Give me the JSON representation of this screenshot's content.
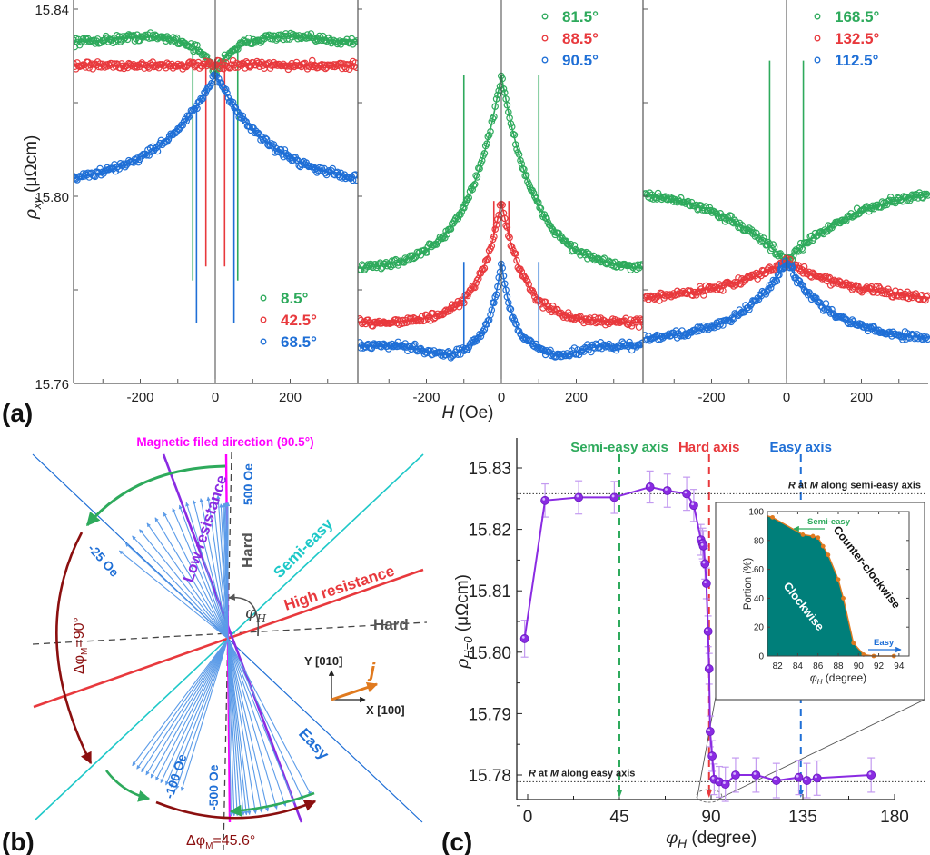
{
  "colors": {
    "green": "#2eaa5c",
    "red": "#e8393d",
    "blue": "#1f6fd6",
    "purple": "#8a2be2",
    "magenta": "#ff00ff",
    "cyan": "#1ec8c8",
    "darkred": "#8b0f0f",
    "orange": "#e07a1f",
    "teal": "#007f7a",
    "lightblue": "#5b9be8"
  },
  "panel_labels": {
    "a": "(a)",
    "b": "(b)",
    "c": "(c)"
  },
  "chart_data": [
    {
      "id": "a",
      "type": "scatter",
      "title": "",
      "xlabel_italic": "H",
      "xlabel_unit": " (Oe)",
      "ylabel_italic": "ρ",
      "ylabel_sub": "xy",
      "ylabel_unit": " (μΩcm)",
      "ylim": [
        15.76,
        15.84
      ],
      "yticks": [
        "15.76",
        "15.80",
        "15.84"
      ],
      "xlim": [
        -380,
        380
      ],
      "xticks": [
        "-200",
        "0",
        "200"
      ],
      "subplots": [
        {
          "legend": [
            {
              "label": "8.5°",
              "color": "green"
            },
            {
              "label": "42.5°",
              "color": "red"
            },
            {
              "label": "68.5°",
              "color": "blue"
            }
          ],
          "legend_position": "bottom-right",
          "series": [
            {
              "name": "8.5°",
              "color": "green",
              "baseline": 15.833,
              "peak_at_H": -150,
              "center": 15.826,
              "switch_field": 60,
              "dip": 15.782
            },
            {
              "name": "42.5°",
              "color": "red",
              "baseline": 15.828,
              "center": 15.826,
              "switch_field": 25,
              "dip": 15.785
            },
            {
              "name": "68.5°",
              "color": "blue",
              "baseline": 15.802,
              "center": 15.826,
              "switch_field": 50,
              "dip": 15.773
            }
          ]
        },
        {
          "legend": [
            {
              "label": "81.5°",
              "color": "green"
            },
            {
              "label": "88.5°",
              "color": "red"
            },
            {
              "label": "90.5°",
              "color": "blue"
            }
          ],
          "legend_position": "top-right",
          "series": [
            {
              "name": "81.5°",
              "color": "green",
              "baseline": 15.784,
              "center": 15.826,
              "switch_field": 100
            },
            {
              "name": "88.5°",
              "color": "red",
              "baseline": 15.773,
              "center": 15.799,
              "switch_field": 20
            },
            {
              "name": "90.5°",
              "color": "blue",
              "baseline": 15.768,
              "center": 15.786,
              "switch_field": 100
            }
          ]
        },
        {
          "legend": [
            {
              "label": "168.5°",
              "color": "green"
            },
            {
              "label": "132.5°",
              "color": "red"
            },
            {
              "label": "112.5°",
              "color": "blue"
            }
          ],
          "legend_position": "top-right",
          "series": [
            {
              "name": "168.5°",
              "color": "green",
              "baseline": 15.803,
              "center": 15.786,
              "switch_field": 45,
              "peak": 15.829
            },
            {
              "name": "132.5°",
              "color": "red",
              "baseline": 15.777,
              "center": 15.786,
              "switch_field": 20
            },
            {
              "name": "112.5°",
              "color": "blue",
              "baseline": 15.769,
              "center": 15.786,
              "switch_field": 20
            }
          ]
        }
      ]
    },
    {
      "id": "b",
      "type": "diagram",
      "labels": {
        "title": "Magnetic filed direction (90.5°)",
        "low_resistance": "Low resistance",
        "high_resistance": "High resistance",
        "semi_easy": "Semi-easy",
        "hard_vertical": "Hard",
        "hard_horizontal": "Hard",
        "easy": "Easy",
        "field_500": "500 Oe",
        "field_m25": "-25 Oe",
        "field_m100": "-100 Oe",
        "field_m500": "-500 Oe",
        "delta_90": "Δφ",
        "delta_90_sub": "M",
        "delta_90_val": "=90°",
        "delta_45": "Δφ",
        "delta_45_sub": "M",
        "delta_45_val": "=45.6°",
        "phi_h": "φ",
        "phi_h_sub": "H",
        "y_axis": "Y [010]",
        "x_axis": "X [100]",
        "current": "j"
      },
      "angles_deg": {
        "field": 90.5,
        "semi_easy": 45,
        "easy": 135,
        "hard_1": 90,
        "hard_2": 0,
        "high_resistance": 20,
        "low_resistance": 112
      }
    },
    {
      "id": "c",
      "type": "line",
      "xlabel_italic": "φ",
      "xlabel_sub": "H",
      "xlabel_unit": " (degree)",
      "ylabel_italic": "ρ",
      "ylabel_sub": "H=0",
      "ylabel_unit": " (μΩcm)",
      "xlim": [
        -5,
        182
      ],
      "ylim": [
        15.776,
        15.834
      ],
      "xticks": [
        "0",
        "45",
        "90",
        "135",
        "180"
      ],
      "yticks": [
        "15.78",
        "15.79",
        "15.80",
        "15.81",
        "15.82",
        "15.83"
      ],
      "axis_markers": [
        {
          "label": "Semi-easy axis",
          "x": 45,
          "color": "green"
        },
        {
          "label": "Hard axis",
          "x": 89,
          "color": "red"
        },
        {
          "label": "Easy axis",
          "x": 134,
          "color": "blue"
        }
      ],
      "reference_lines": [
        {
          "label_i": "R",
          "label_mid": " at ",
          "label_i2": "M",
          "label_rest": " along semi-easy axis",
          "y": 15.8258
        },
        {
          "label_i": "R",
          "label_mid": " at ",
          "label_i2": "M",
          "label_rest": " along easy axis",
          "y": 15.7789
        }
      ],
      "series": [
        {
          "name": "rho_H0",
          "color": "purple",
          "x": [
            -1.5,
            8.5,
            25,
            42.5,
            60,
            68.5,
            78,
            81.5,
            85,
            85.8,
            86.2,
            87,
            87.7,
            88.5,
            89,
            89.5,
            90.5,
            91.5,
            94,
            97,
            102,
            112,
            122,
            133,
            137,
            142,
            168.5
          ],
          "y": [
            15.8022,
            15.8247,
            15.8252,
            15.8252,
            15.8269,
            15.8263,
            15.8258,
            15.8239,
            15.8183,
            15.8177,
            15.8173,
            15.8144,
            15.8112,
            15.8034,
            15.7973,
            15.7871,
            15.7831,
            15.7793,
            15.7789,
            15.7785,
            15.78,
            15.78,
            15.7791,
            15.7796,
            15.7791,
            15.7795,
            15.78
          ],
          "err": [
            0.003,
            0.0027,
            0.0027,
            0.0026,
            0.0026,
            0.0027,
            0.0027,
            0.0026,
            0.0025,
            0.0025,
            0.0025,
            0.0025,
            0.0025,
            0.0025,
            0.0025,
            0.0025,
            0.0025,
            0.0025,
            0.0025,
            0.0028,
            0.0028,
            0.0028,
            0.0028,
            0.0028,
            0.0028,
            0.0028,
            0.0028
          ]
        }
      ],
      "inset": {
        "type": "area",
        "xlabel_italic": "φ",
        "xlabel_sub": "H",
        "xlabel_unit": " (degree)",
        "ylabel": "Portion (%)",
        "xlim": [
          81,
          95
        ],
        "ylim": [
          0,
          100
        ],
        "xticks": [
          "82",
          "84",
          "86",
          "88",
          "90",
          "92",
          "94"
        ],
        "yticks": [
          "0",
          "20",
          "40",
          "60",
          "80",
          "100"
        ],
        "x": [
          81,
          81.5,
          84.5,
          85.5,
          86,
          86.5,
          87,
          88,
          88.5,
          89.5,
          90.5,
          91.5,
          93.5
        ],
        "y": [
          97,
          96,
          84,
          83,
          82,
          76,
          70,
          53,
          40,
          9,
          1,
          0,
          0
        ],
        "area_label": "Clockwise",
        "region_label": "Counter-clockwise",
        "arrow_left_label": "Semi-easy",
        "arrow_right_label": "Easy"
      }
    }
  ]
}
